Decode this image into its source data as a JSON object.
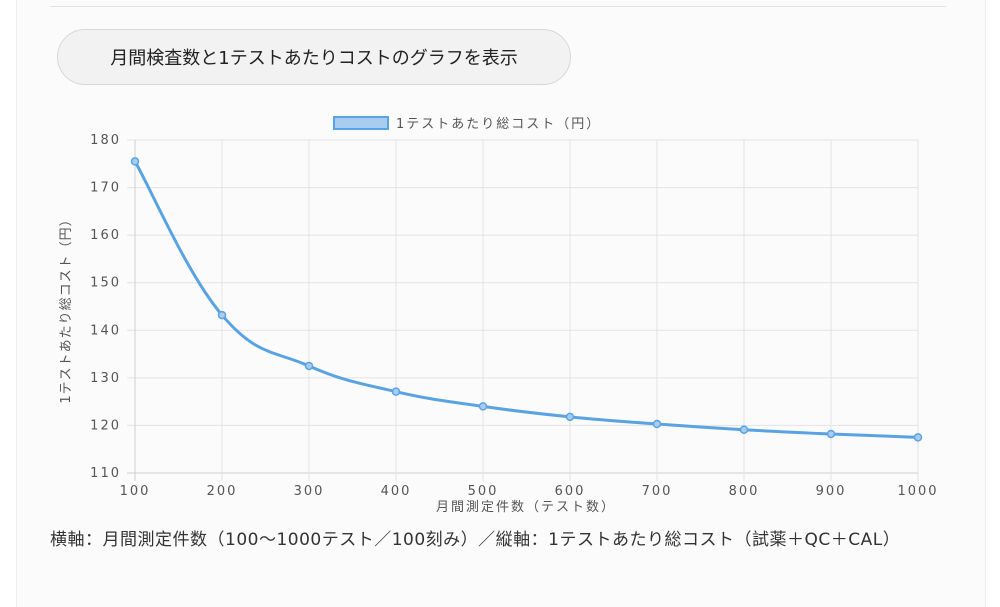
{
  "button": {
    "label": "月間検査数と1テストあたりコストのグラフを表示"
  },
  "caption": "横軸：月間測定件数（100〜1000テスト／100刻み）／縦軸：1テストあたり総コスト（試薬＋QC＋CAL）",
  "chart_data": {
    "type": "line",
    "title": "",
    "x": [
      100,
      200,
      300,
      400,
      500,
      600,
      700,
      800,
      900,
      1000
    ],
    "series": [
      {
        "name": "1テストあたり総コスト（円）",
        "values": [
          175.5,
          143.2,
          132.5,
          127.1,
          124.0,
          121.8,
          120.3,
          119.1,
          118.2,
          117.5
        ],
        "color": "#5aa3e2"
      }
    ],
    "xlabel": "月間測定件数（テスト数）",
    "ylabel": "1テストあたり総コスト（円）",
    "xlim": [
      100,
      1000
    ],
    "ylim": [
      110,
      180
    ],
    "yticks": [
      110,
      120,
      130,
      140,
      150,
      160,
      170,
      180
    ],
    "grid": true,
    "legend": "top-center"
  }
}
